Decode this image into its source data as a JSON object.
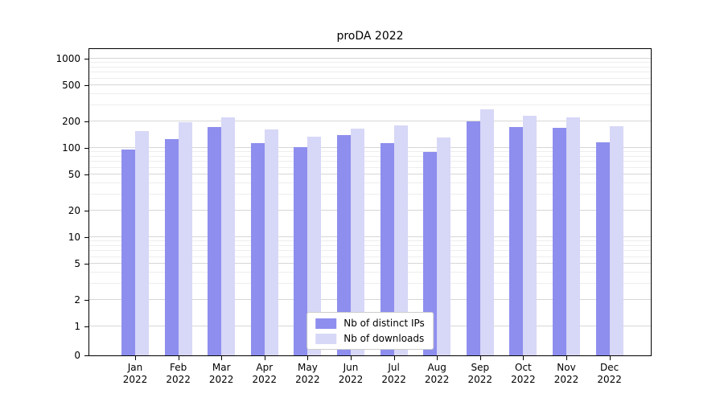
{
  "chart_data": {
    "type": "bar",
    "title": "proDA 2022",
    "yscale": "symlog",
    "grid": true,
    "legend_position": "lower center",
    "ylim": [
      0,
      1300
    ],
    "yticks_major": [
      0,
      1,
      2,
      5,
      10,
      20,
      50,
      100,
      200,
      500,
      1000
    ],
    "yticks_minor": [
      3,
      4,
      6,
      7,
      8,
      9,
      30,
      40,
      60,
      70,
      80,
      90,
      300,
      400,
      600,
      700,
      800,
      900
    ],
    "categories": [
      {
        "month": "Jan",
        "year": "2022"
      },
      {
        "month": "Feb",
        "year": "2022"
      },
      {
        "month": "Mar",
        "year": "2022"
      },
      {
        "month": "Apr",
        "year": "2022"
      },
      {
        "month": "May",
        "year": "2022"
      },
      {
        "month": "Jun",
        "year": "2022"
      },
      {
        "month": "Jul",
        "year": "2022"
      },
      {
        "month": "Aug",
        "year": "2022"
      },
      {
        "month": "Sep",
        "year": "2022"
      },
      {
        "month": "Oct",
        "year": "2022"
      },
      {
        "month": "Nov",
        "year": "2022"
      },
      {
        "month": "Dec",
        "year": "2022"
      }
    ],
    "series": [
      {
        "name": "Nb of distinct IPs",
        "color": "#8e8eee",
        "values": [
          95,
          125,
          170,
          113,
          102,
          140,
          113,
          90,
          197,
          172,
          168,
          115
        ]
      },
      {
        "name": "Nb of downloads",
        "color": "#d7d7f7",
        "values": [
          155,
          195,
          220,
          160,
          135,
          165,
          180,
          130,
          270,
          230,
          220,
          175
        ]
      }
    ],
    "grid_colors": {
      "major": "#d6d6d6",
      "minor": "#ededed"
    }
  }
}
